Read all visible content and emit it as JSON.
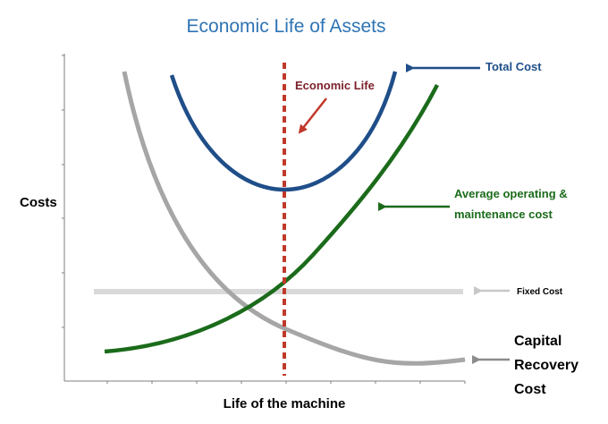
{
  "title": "Economic Life of Assets",
  "y_axis_label": "Costs",
  "x_axis_label": "Life of the machine",
  "labels": {
    "economic_life": "Economic Life",
    "total_cost": "Total Cost",
    "avg_operating_line1": "Average operating &",
    "avg_operating_line2": "maintenance cost",
    "fixed_cost": "Fixed Cost",
    "capital_line1": "Capital",
    "capital_line2": "Recovery",
    "capital_line3": "Cost"
  },
  "colors": {
    "title": "#2e74b5",
    "total_cost": "#1f4e89",
    "avg_operating": "#1b6b1b",
    "capital_recovery": "#a6a6a6",
    "fixed_cost": "#d9d9d9",
    "economic_life": "#c0392b",
    "economic_life_text": "#7b1f2a",
    "axis": "#7f7f7f"
  }
}
